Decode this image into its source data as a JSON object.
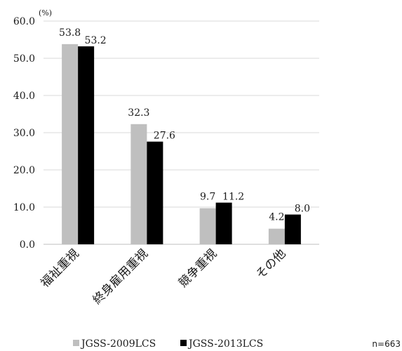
{
  "chart_data": {
    "type": "bar",
    "unit_label": "(%)",
    "categories": [
      "福祉重視",
      "終身雇用重視",
      "競争重視",
      "その他"
    ],
    "series": [
      {
        "name": "JGSS-2009LCS",
        "values": [
          53.8,
          32.3,
          9.7,
          4.2
        ],
        "color": "#bfbfbf"
      },
      {
        "name": "JGSS-2013LCS",
        "values": [
          53.2,
          27.6,
          11.2,
          8.0
        ],
        "color": "#000000"
      }
    ],
    "ylim": [
      0,
      60
    ],
    "yticks": [
      "0.0",
      "10.0",
      "20.0",
      "30.0",
      "40.0",
      "50.0",
      "60.0"
    ],
    "grid": true,
    "legend_position": "bottom",
    "note": "n=663"
  }
}
